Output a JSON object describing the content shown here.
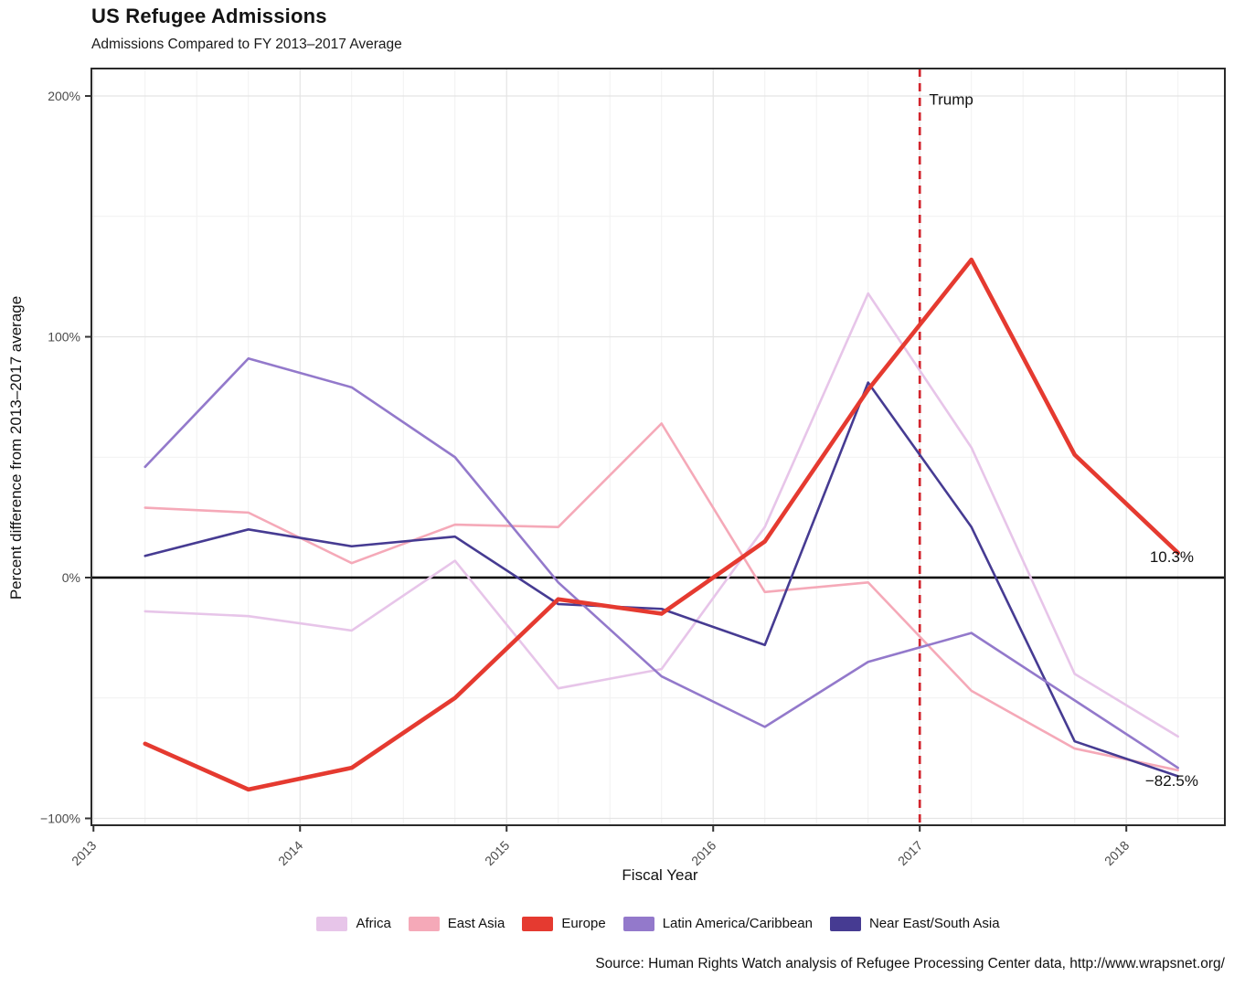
{
  "header": {
    "title": "US Refugee Admissions",
    "subtitle": "Admissions Compared to FY 2013–2017 Average"
  },
  "chart_data": {
    "type": "line",
    "title": "US Refugee Admissions",
    "subtitle": "Admissions Compared to FY 2013–2017 Average",
    "xlabel": "Fiscal Year",
    "ylabel": "Percent difference from 2013–2017 average",
    "x": [
      2013.25,
      2013.75,
      2014.25,
      2014.75,
      2015.25,
      2015.75,
      2016.25,
      2016.75,
      2017.25,
      2017.75,
      2018.25
    ],
    "series": [
      {
        "name": "Africa",
        "color": "#e7c5e9",
        "stroke_width": 2.6,
        "values": [
          -14,
          -16,
          -22,
          7,
          -46,
          -38,
          21,
          118,
          54,
          -40,
          -66
        ]
      },
      {
        "name": "East Asia",
        "color": "#f5a9b8",
        "stroke_width": 2.6,
        "values": [
          29,
          27,
          6,
          22,
          21,
          64,
          -6,
          -2,
          -47,
          -71,
          -80
        ]
      },
      {
        "name": "Europe",
        "color": "#e53a30",
        "stroke_width": 4.6,
        "values": [
          -69,
          -88,
          -79,
          -50,
          -9,
          -15,
          15,
          78,
          132,
          51,
          10.3
        ]
      },
      {
        "name": "Latin America/Caribbean",
        "color": "#9379cb",
        "stroke_width": 2.6,
        "values": [
          46,
          91,
          79,
          50,
          -2,
          -41,
          -62,
          -35,
          -23,
          -51,
          -79
        ]
      },
      {
        "name": "Near East/South Asia",
        "color": "#463b92",
        "stroke_width": 2.6,
        "values": [
          9,
          20,
          13,
          17,
          -11,
          -13,
          -28,
          81,
          21,
          -68,
          -82.5
        ]
      }
    ],
    "x_ticks": [
      {
        "value": 2013,
        "label": "2013"
      },
      {
        "value": 2014,
        "label": "2014"
      },
      {
        "value": 2015,
        "label": "2015"
      },
      {
        "value": 2016,
        "label": "2016"
      },
      {
        "value": 2017,
        "label": "2017"
      },
      {
        "value": 2018,
        "label": "2018"
      }
    ],
    "y_ticks": [
      {
        "value": 200,
        "label": "200%"
      },
      {
        "value": 100,
        "label": "100%"
      },
      {
        "value": 0,
        "label": "0%"
      },
      {
        "value": -100,
        "label": "−100%"
      }
    ],
    "y_minor": [
      150,
      50,
      -50
    ],
    "x_minor_step": 0.25,
    "xlim": [
      2012.99,
      2018.477
    ],
    "ylim": [
      -102.85,
      211.4
    ],
    "grid": true,
    "legend_position": "bottom",
    "zero_line_value": 0,
    "vline": {
      "x": 2017,
      "color": "#d2262e",
      "style": "dashed"
    },
    "annotations": [
      {
        "label": "Trump",
        "x": 2017.045,
        "y": 196.5,
        "anchor": "start"
      },
      {
        "label": "10.3%",
        "x": 2018.22,
        "y": 6.5,
        "anchor": "middle"
      },
      {
        "label": "−82.5%",
        "x": 2018.22,
        "y": -86.5,
        "anchor": "middle"
      }
    ],
    "style": {
      "grid_major": "#e4e4e4",
      "grid_minor": "#f1f1f1",
      "zero_line": "#000000",
      "panel_border": "#2a2a2a",
      "tick_color": "#333333",
      "tick_label_color": "#4b4b4b",
      "text_color": "#111111"
    }
  },
  "footer": {
    "source": "Source: Human Rights Watch analysis of Refugee Processing Center data, http://www.wrapsnet.org/"
  }
}
